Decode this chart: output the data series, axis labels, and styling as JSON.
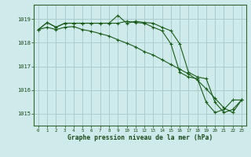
{
  "title": "Graphe pression niveau de la mer (hPa)",
  "bg_color": "#ceeaea",
  "grid_color": "#aacccc",
  "line_color": "#1a5c1a",
  "xmin": -0.5,
  "xmax": 23.5,
  "ymin": 1014.5,
  "ymax": 1019.6,
  "yticks": [
    1015,
    1016,
    1017,
    1018,
    1019
  ],
  "xtick_labels": [
    "0",
    "1",
    "2",
    "3",
    "4",
    "5",
    "6",
    "7",
    "8",
    "9",
    "10",
    "11",
    "12",
    "13",
    "14",
    "15",
    "16",
    "17",
    "18",
    "19",
    "20",
    "21",
    "22",
    "23"
  ],
  "xtick_pos": [
    0,
    1,
    2,
    3,
    4,
    5,
    6,
    7,
    8,
    9,
    10,
    11,
    12,
    13,
    14,
    15,
    16,
    17,
    18,
    19,
    20,
    21,
    22,
    23
  ],
  "series1_x": [
    0,
    1,
    2,
    3,
    4,
    5,
    6,
    7,
    8,
    9,
    10,
    11,
    12,
    13,
    14,
    15,
    16,
    17,
    18,
    19,
    20,
    21,
    22,
    23
  ],
  "series1_y": [
    1018.55,
    1018.85,
    1018.65,
    1018.82,
    1018.82,
    1018.82,
    1018.82,
    1018.82,
    1018.82,
    1019.15,
    1018.82,
    1018.9,
    1018.85,
    1018.82,
    1018.65,
    1018.5,
    1017.95,
    1016.75,
    1016.55,
    1016.48,
    1015.48,
    1015.05,
    1015.18,
    1015.58
  ],
  "series2_x": [
    0,
    1,
    2,
    3,
    4,
    5,
    6,
    7,
    8,
    9,
    10,
    11,
    12,
    13,
    14,
    15,
    16,
    17,
    18,
    19,
    20,
    21,
    22,
    23
  ],
  "series2_y": [
    1018.55,
    1018.65,
    1018.55,
    1018.65,
    1018.68,
    1018.55,
    1018.48,
    1018.38,
    1018.28,
    1018.12,
    1017.98,
    1017.82,
    1017.62,
    1017.48,
    1017.28,
    1017.08,
    1016.88,
    1016.68,
    1016.42,
    1016.05,
    1015.65,
    1015.25,
    1015.05,
    1015.58
  ],
  "series3_x": [
    0,
    1,
    2,
    3,
    4,
    5,
    6,
    7,
    8,
    9,
    10,
    11,
    12,
    13,
    14,
    15,
    16,
    17,
    18,
    19,
    20,
    21,
    22,
    23
  ],
  "series3_y": [
    1018.55,
    1018.85,
    1018.65,
    1018.82,
    1018.82,
    1018.82,
    1018.82,
    1018.82,
    1018.82,
    1018.82,
    1018.9,
    1018.85,
    1018.82,
    1018.65,
    1018.5,
    1017.95,
    1016.75,
    1016.55,
    1016.48,
    1015.48,
    1015.05,
    1015.18,
    1015.58,
    1015.58
  ]
}
